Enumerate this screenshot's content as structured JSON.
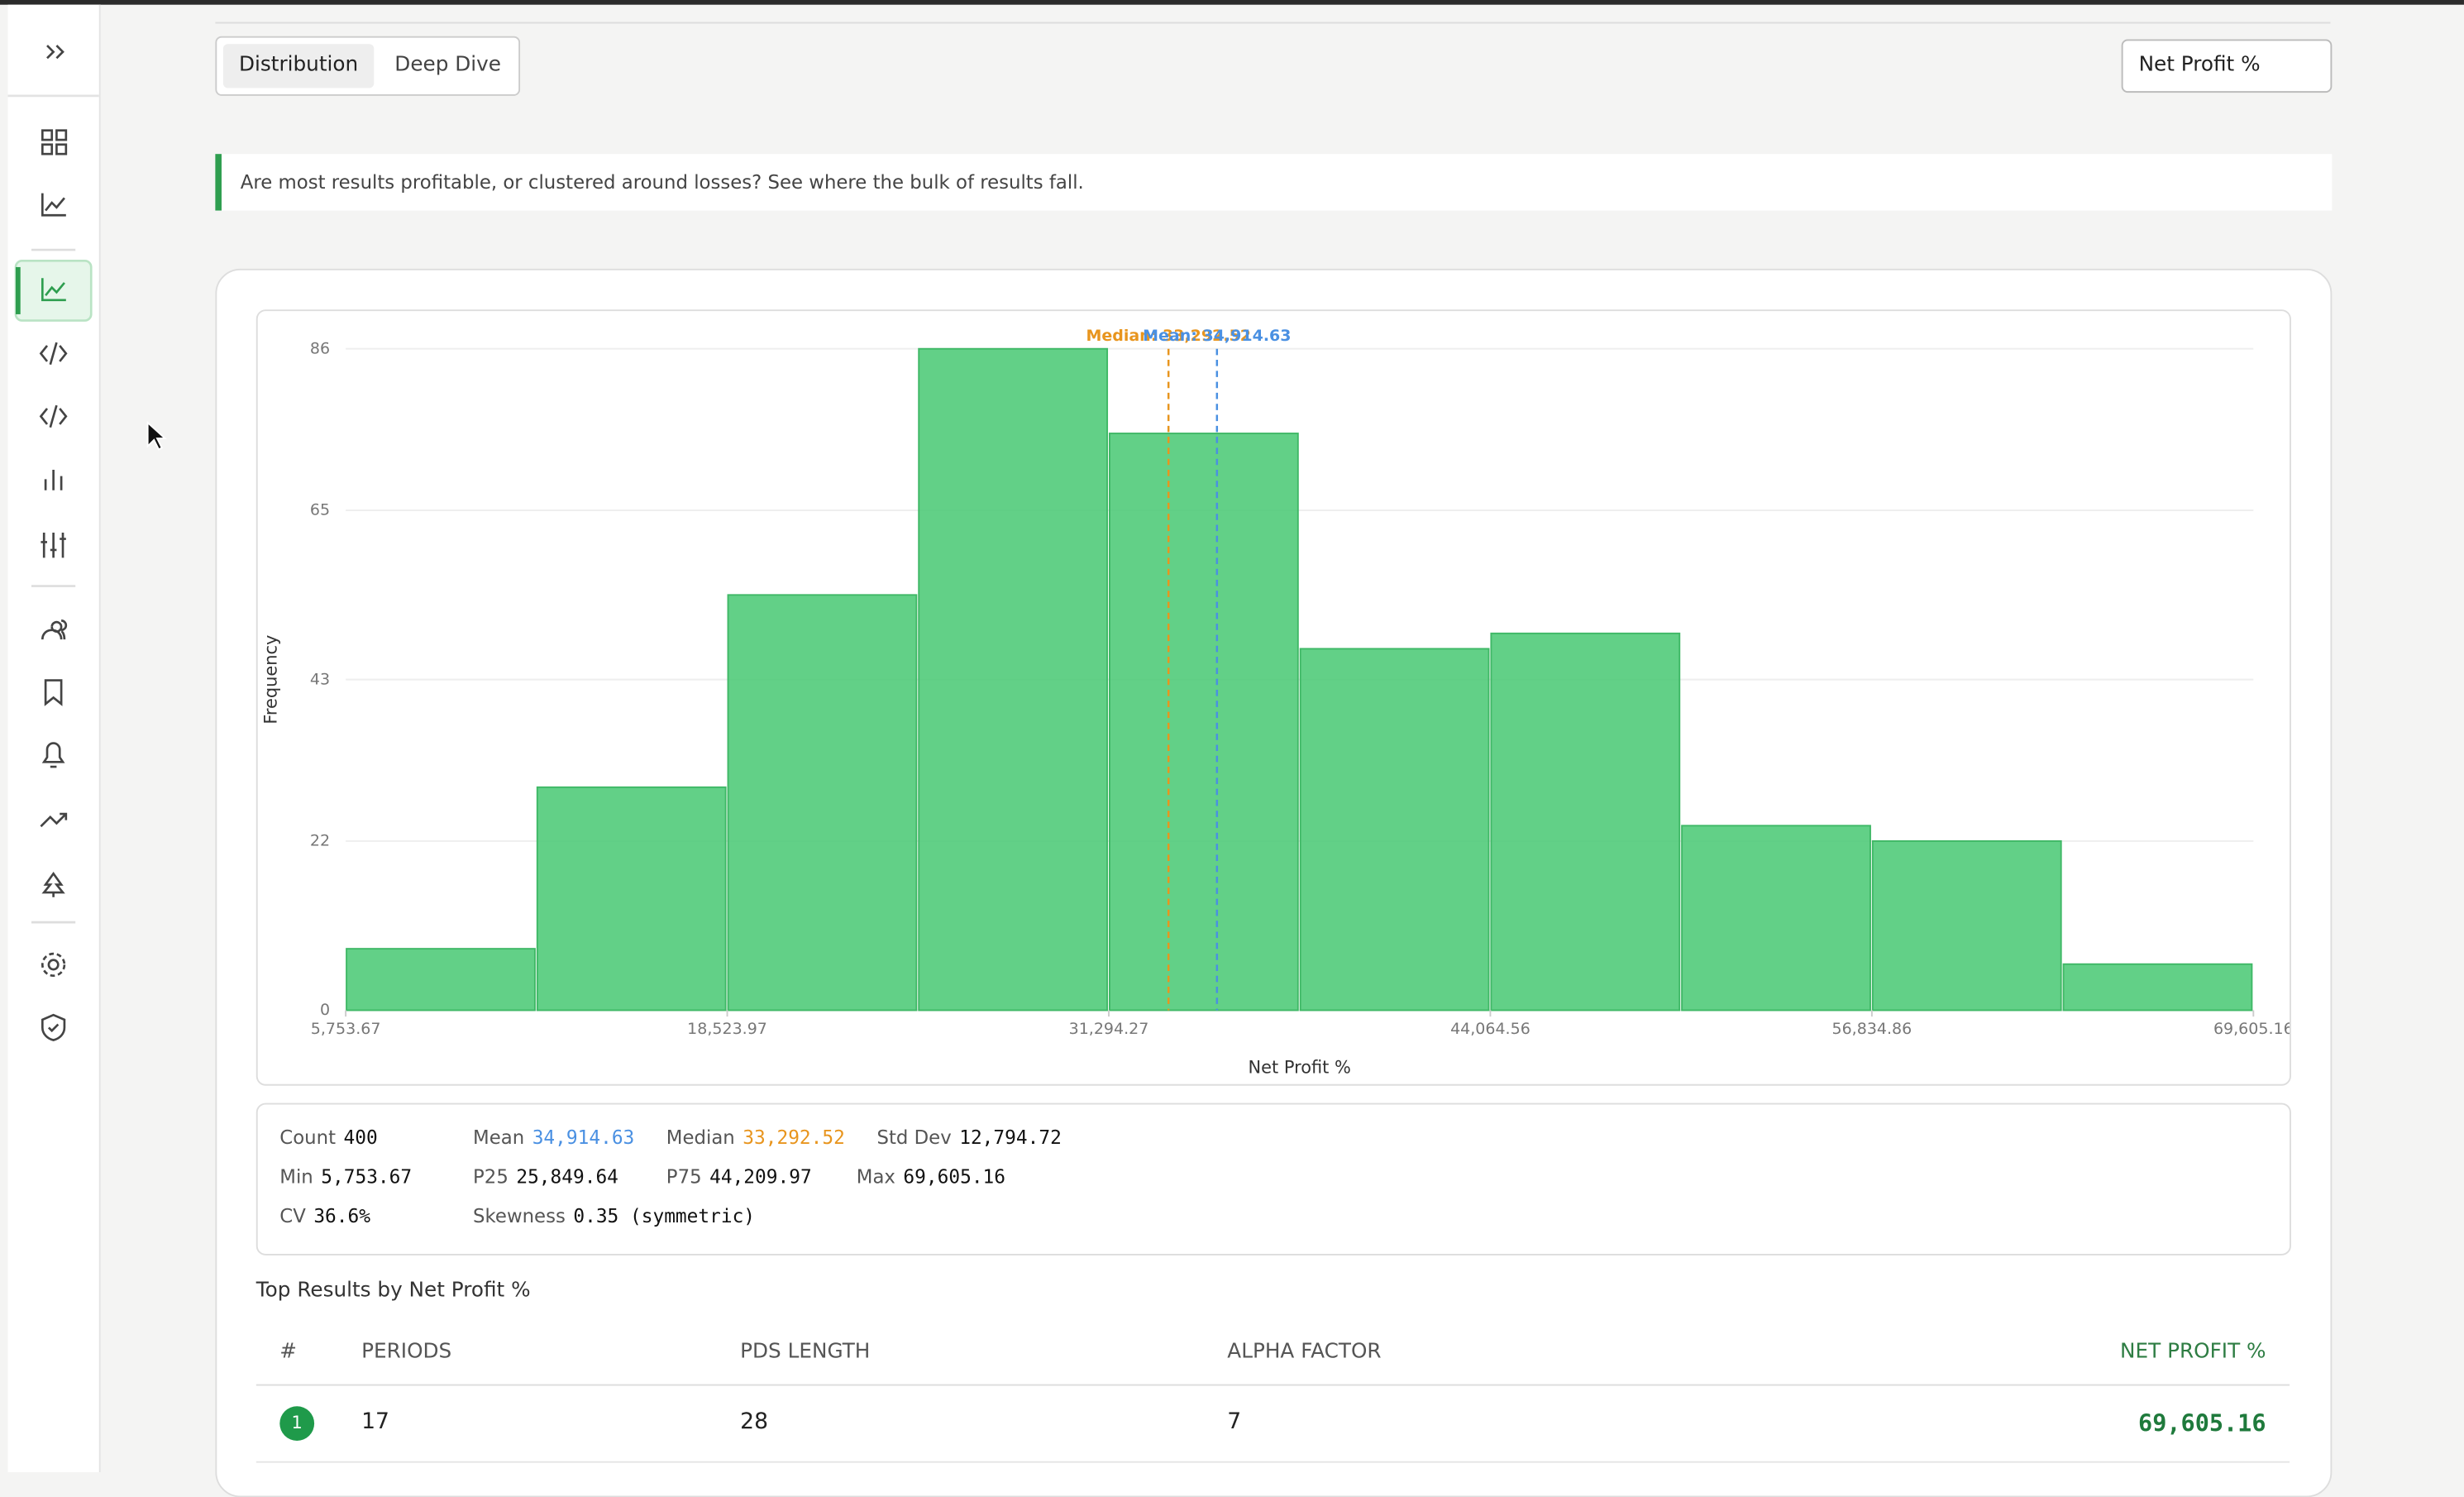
{
  "tabs": [
    "Distribution",
    "Deep Dive"
  ],
  "metric_select": "Net Profit %",
  "info": "Are most results profitable, or clustered around losses? See where the bulk of results fall.",
  "chart_data": {
    "type": "histogram",
    "y_label": "Frequency",
    "x_label": "Net Profit %",
    "bins": [
      5753.67,
      12138.82,
      18523.97,
      24909.12,
      31294.27,
      37679.41,
      44064.56,
      50449.71,
      56834.86,
      63220.01,
      69605.16
    ],
    "values": [
      8,
      29,
      54,
      86,
      75,
      47,
      49,
      24,
      22,
      6
    ],
    "color": "#4cc976",
    "xlim": [
      5753.67,
      69605.16
    ],
    "xticks": [
      {
        "value": 5753.67,
        "label": "5,753.67"
      },
      {
        "value": 18523.97,
        "label": "18,523.97"
      },
      {
        "value": 31294.27,
        "label": "31,294.27"
      },
      {
        "value": 44064.56,
        "label": "44,064.56"
      },
      {
        "value": 56834.86,
        "label": "56,834.86"
      },
      {
        "value": 69605.16,
        "label": "69,605.16"
      }
    ],
    "ylim": [
      0,
      86
    ],
    "yticks": [
      0,
      22,
      43,
      65,
      86
    ],
    "grid": true,
    "annotations": [
      {
        "label": "Median: 33,292.52",
        "value": 33292.52,
        "color": "#e8951e"
      },
      {
        "label": "Mean: 34,914.63",
        "value": 34914.63,
        "color": "#4a90e2"
      }
    ]
  },
  "stats": [
    [
      {
        "label": "Count",
        "value": "400"
      },
      {
        "label": "Mean",
        "value": "34,914.63",
        "color": "#4a90e2"
      },
      {
        "label": "Median",
        "value": "33,292.52",
        "color": "#e8951e"
      },
      {
        "label": "Std Dev",
        "value": "12,794.72"
      }
    ],
    [
      {
        "label": "Min",
        "value": "5,753.67"
      },
      {
        "label": "P25",
        "value": "25,849.64"
      },
      {
        "label": "P75",
        "value": "44,209.97"
      },
      {
        "label": "Max",
        "value": "69,605.16"
      }
    ],
    [
      {
        "label": "CV",
        "value": "36.6%"
      },
      {
        "label": "Skewness",
        "value": "0.35 (symmetric)"
      }
    ]
  ],
  "table": {
    "title": "Top Results by Net Profit %",
    "headers": [
      "#",
      "PERIODS",
      "PDS LENGTH",
      "ALPHA FACTOR",
      "NET PROFIT %"
    ],
    "rows": [
      [
        "1",
        "17",
        "28",
        "7",
        "69,605.16"
      ]
    ]
  }
}
